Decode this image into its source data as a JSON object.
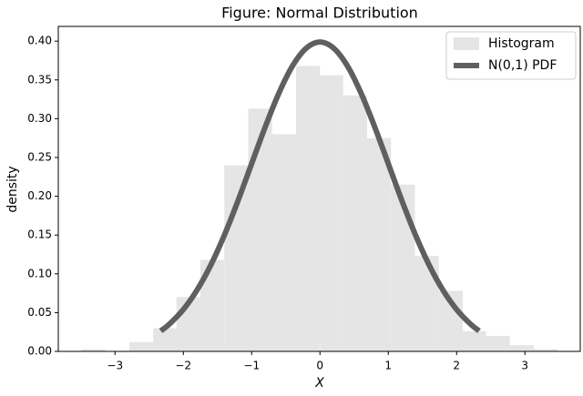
{
  "chart_data": {
    "type": "histogram",
    "title": "Figure: Normal Distribution",
    "x_label": "X",
    "y_label": "density",
    "xlim": [
      -3.83,
      3.81
    ],
    "ylim": [
      0,
      0.419
    ],
    "xticks": [
      {
        "value": -3,
        "label": "−3"
      },
      {
        "value": -2,
        "label": "−2"
      },
      {
        "value": -1,
        "label": "−1"
      },
      0,
      1,
      2,
      3
    ],
    "yticks": [
      {
        "value": 0,
        "label": "0.00"
      },
      {
        "value": 0.05,
        "label": "0.05"
      },
      {
        "value": 0.1,
        "label": "0.10"
      },
      {
        "value": 0.15,
        "label": "0.15"
      },
      {
        "value": 0.2,
        "label": "0.20"
      },
      {
        "value": 0.25,
        "label": "0.25"
      },
      {
        "value": 0.3,
        "label": "0.30"
      },
      {
        "value": 0.35,
        "label": "0.35"
      },
      {
        "value": 0.4,
        "label": "0.40"
      }
    ],
    "legend": "upper right",
    "series": [
      {
        "name": "Histogram",
        "type": "histogram",
        "color": "#e5e5e5",
        "bins": [
          -3.49,
          -3.14,
          -2.79,
          -2.44,
          -2.1,
          -1.75,
          -1.4,
          -1.05,
          -0.7,
          -0.35,
          0,
          0.34,
          0.69,
          1.04,
          1.39,
          1.74,
          2.09,
          2.43,
          2.78,
          3.13,
          3.48
        ],
        "values": [
          0.003,
          0,
          0.012,
          0.03,
          0.07,
          0.118,
          0.24,
          0.313,
          0.28,
          0.368,
          0.356,
          0.33,
          0.275,
          0.215,
          0.123,
          0.078,
          0.026,
          0.02,
          0.008,
          0.003
        ]
      },
      {
        "name": "N(0,1) PDF",
        "type": "line",
        "color": "#5f5f5f",
        "x": [
          -2.33,
          -2.2,
          -2.0,
          -1.8,
          -1.6,
          -1.4,
          -1.2,
          -1.0,
          -0.8,
          -0.6,
          -0.4,
          -0.2,
          0,
          0.2,
          0.4,
          0.6,
          0.8,
          1.0,
          1.2,
          1.4,
          1.6,
          1.8,
          2.0,
          2.2,
          2.33
        ],
        "values": [
          0.0264,
          0.0355,
          0.054,
          0.079,
          0.1109,
          0.1497,
          0.1942,
          0.242,
          0.2897,
          0.3332,
          0.3683,
          0.391,
          0.3989,
          0.391,
          0.3683,
          0.3332,
          0.2897,
          0.242,
          0.1942,
          0.1497,
          0.1109,
          0.079,
          0.054,
          0.0355,
          0.0264
        ]
      }
    ]
  }
}
